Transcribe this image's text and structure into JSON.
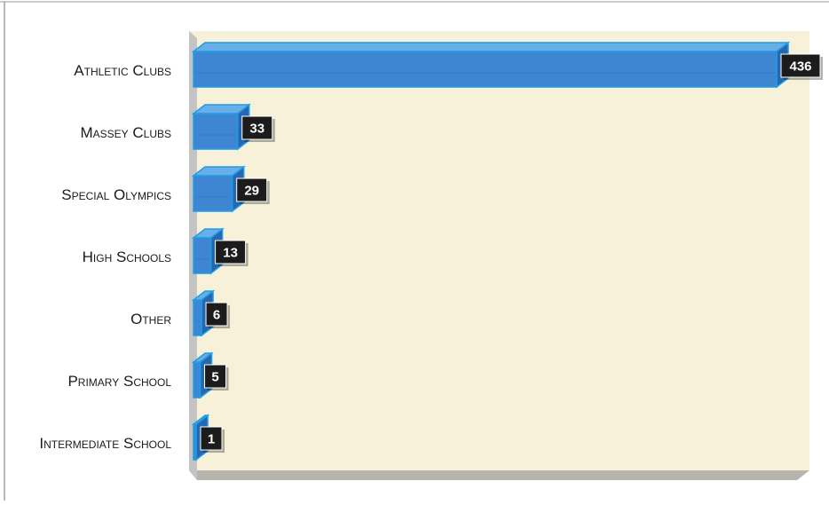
{
  "colors": {
    "plot_bg": "#f6f1d8",
    "wall": "#c4c4c4",
    "floor": "#b5b5ad",
    "bar_front": "#3f86d2",
    "bar_top": "#6aaee8",
    "bar_side": "#2866ad",
    "bar_edge": "#1c9ee8",
    "label_box": "#1c1c1c",
    "label_text": "#ffffff",
    "category_text": "#1a1a1a",
    "frame": "#8a8a8a"
  },
  "chart_data": {
    "type": "bar",
    "orientation": "horizontal",
    "style": "3d",
    "title": "",
    "xlabel": "",
    "ylabel": "",
    "categories": [
      "Athletic Clubs",
      "Massey Clubs",
      "Special Olympics",
      "High Schools",
      "Other",
      "Primary School",
      "Intermediate School"
    ],
    "values": [
      436,
      33,
      29,
      13,
      6,
      5,
      1
    ],
    "data_labels": [
      "436",
      "33",
      "29",
      "13",
      "6",
      "5",
      "1"
    ],
    "xlim": [
      0,
      436
    ],
    "grid": false,
    "legend": "none"
  }
}
